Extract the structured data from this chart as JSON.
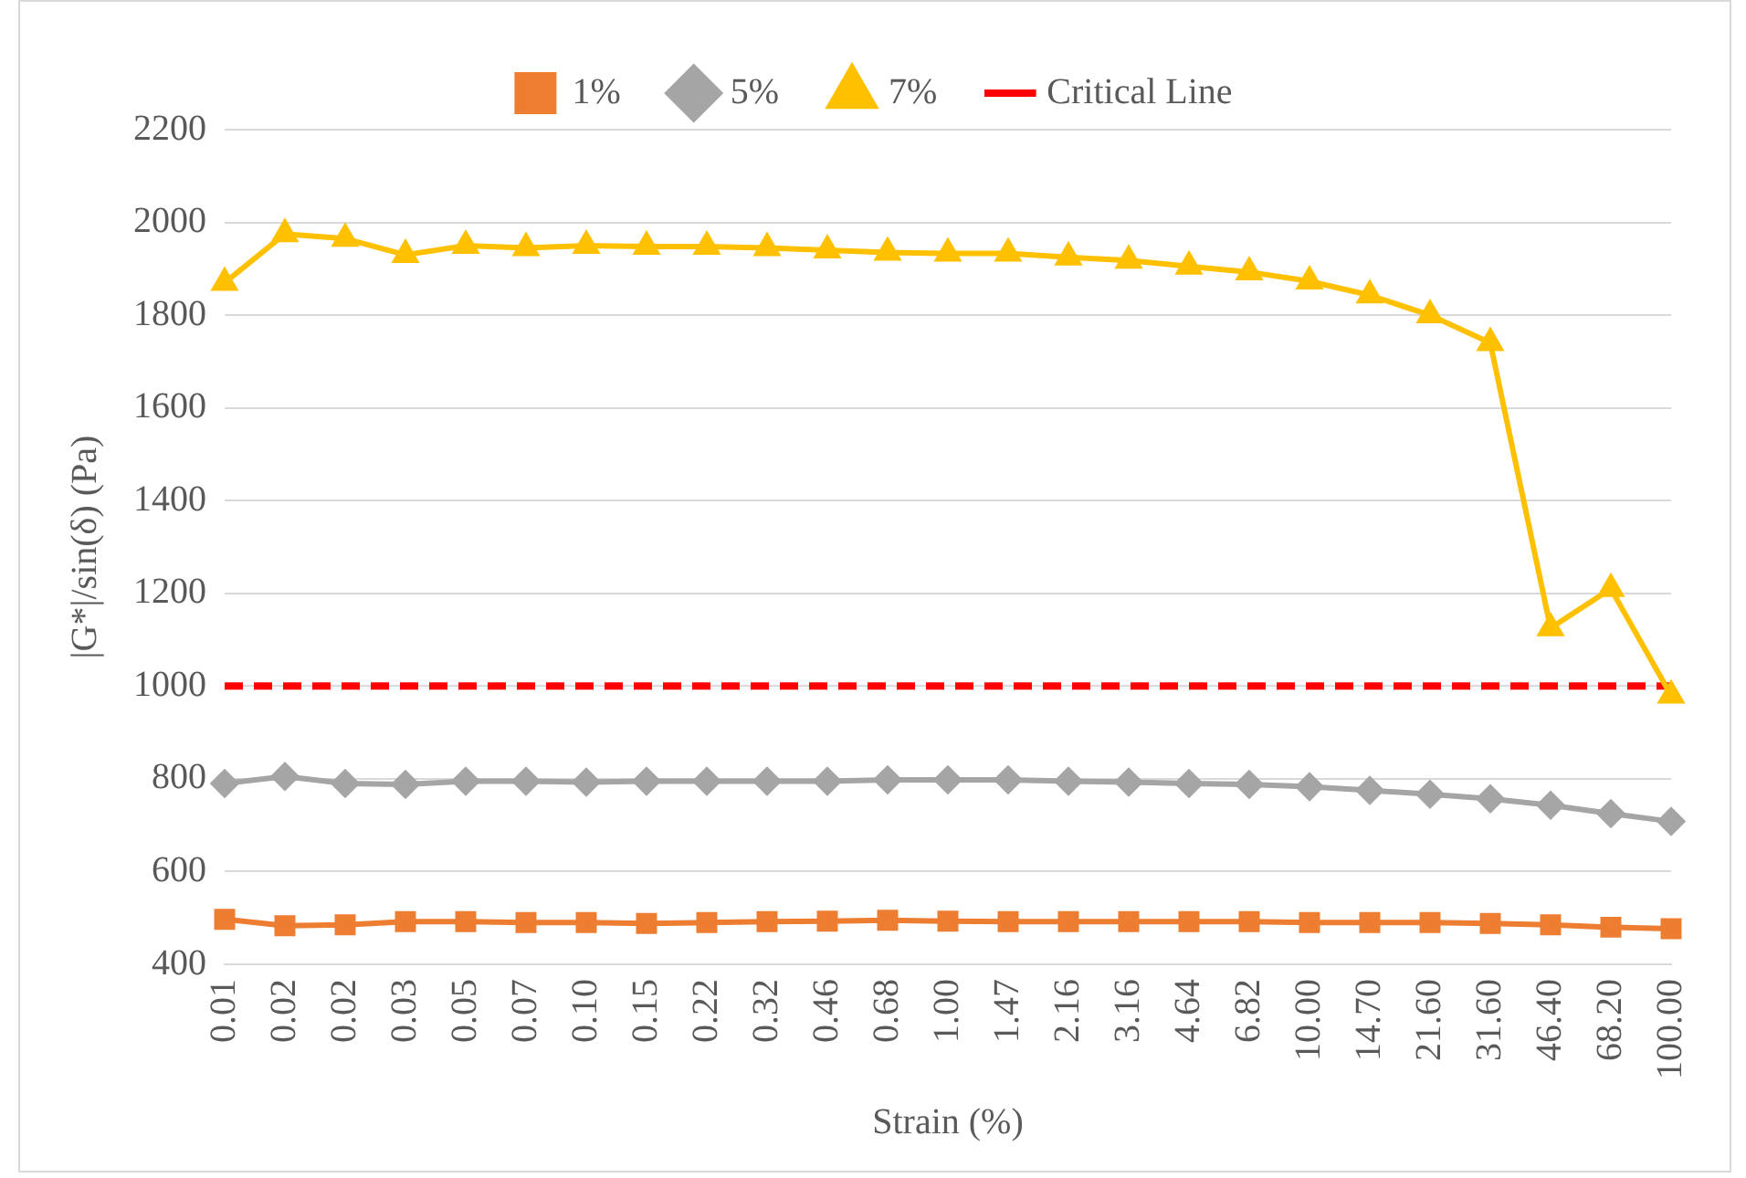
{
  "chart_data": {
    "type": "line",
    "xlabel": "Strain (%)",
    "ylabel": "|G*|/sin(δ) (Pa)",
    "categories": [
      "0.01",
      "0.02",
      "0.02",
      "0.03",
      "0.05",
      "0.07",
      "0.10",
      "0.15",
      "0.22",
      "0.32",
      "0.46",
      "0.68",
      "1.00",
      "1.47",
      "2.16",
      "3.16",
      "4.64",
      "6.82",
      "10.00",
      "14.70",
      "21.60",
      "31.60",
      "46.40",
      "68.20",
      "100.00"
    ],
    "series": [
      {
        "name": "1%",
        "color": "#ed7d31",
        "marker": "square",
        "values": [
          497,
          483,
          485,
          492,
          492,
          490,
          490,
          488,
          490,
          492,
          493,
          495,
          493,
          492,
          492,
          492,
          492,
          492,
          490,
          490,
          490,
          488,
          485,
          480,
          477
        ]
      },
      {
        "name": "5%",
        "color": "#a5a5a5",
        "marker": "diamond",
        "values": [
          790,
          805,
          790,
          788,
          795,
          795,
          793,
          795,
          795,
          795,
          795,
          798,
          798,
          798,
          795,
          793,
          790,
          788,
          783,
          775,
          767,
          757,
          743,
          725,
          708
        ]
      },
      {
        "name": "7%",
        "color": "#ffc000",
        "marker": "triangle",
        "values": [
          1870,
          1975,
          1965,
          1930,
          1950,
          1945,
          1950,
          1948,
          1948,
          1945,
          1940,
          1935,
          1933,
          1933,
          1925,
          1918,
          1905,
          1893,
          1873,
          1843,
          1800,
          1740,
          1125,
          1210,
          980
        ]
      },
      {
        "name": "Critical Line",
        "color": "#ff0000",
        "marker": "none",
        "line_style": "dashed",
        "values": [
          1000,
          1000,
          1000,
          1000,
          1000,
          1000,
          1000,
          1000,
          1000,
          1000,
          1000,
          1000,
          1000,
          1000,
          1000,
          1000,
          1000,
          1000,
          1000,
          1000,
          1000,
          1000,
          1000,
          1000,
          1000
        ]
      }
    ],
    "ylim": [
      400,
      2200
    ],
    "yticks": [
      400,
      600,
      800,
      1000,
      1200,
      1400,
      1600,
      1800,
      2000,
      2200
    ],
    "grid": "y",
    "legend": "top"
  }
}
